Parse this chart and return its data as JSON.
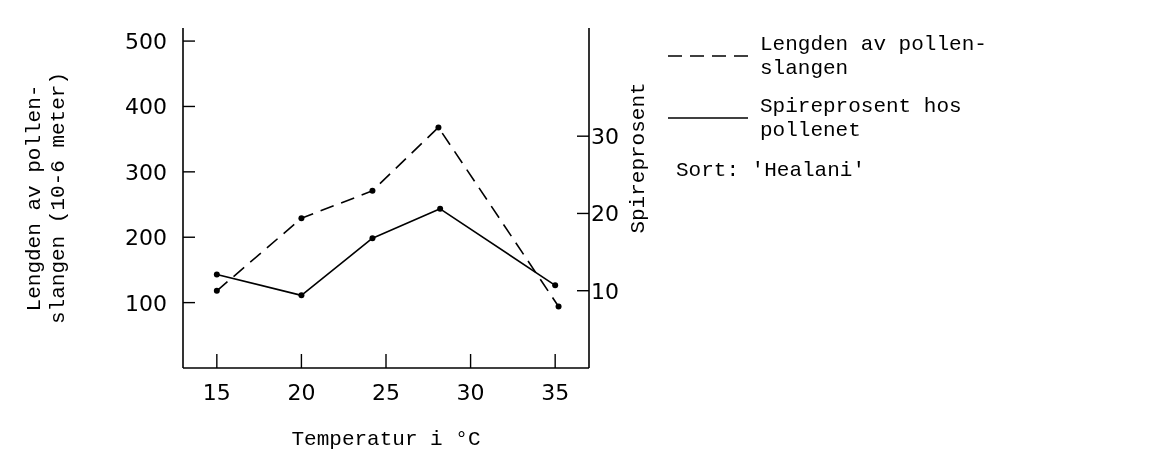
{
  "chart_data": {
    "type": "line",
    "xlabel": "Temperatur i °C",
    "ylabel": "Lengden av pollen-\nslangen (10-6 meter)",
    "y2label": "Spireprosent",
    "xlim": [
      13,
      37
    ],
    "xticks": [
      15,
      20,
      25,
      30,
      35
    ],
    "ylim": [
      0,
      520
    ],
    "yticks": [
      100,
      200,
      300,
      400,
      500
    ],
    "y2lim": [
      0,
      44
    ],
    "y2ticks": [
      10,
      20,
      30
    ],
    "grid": false,
    "legend": "right",
    "marker": "circle",
    "series": [
      {
        "name": "Lengden av pollen-\nslangen",
        "color": "#000000",
        "line_style": "dashed",
        "x": [
          15,
          20,
          24.2,
          28.1,
          35.2
        ],
        "values": [
          118,
          229,
          271,
          368,
          94
        ]
      },
      {
        "name": "Spireprosent hos\npollenet",
        "color": "#000000",
        "line_style": "solid",
        "axis": "y2",
        "x": [
          15,
          20,
          24.2,
          28.2,
          35
        ],
        "values": [
          12.1,
          9.4,
          16.8,
          20.6,
          10.7
        ]
      }
    ],
    "annotations": [
      "Sort: 'Healani'"
    ]
  }
}
